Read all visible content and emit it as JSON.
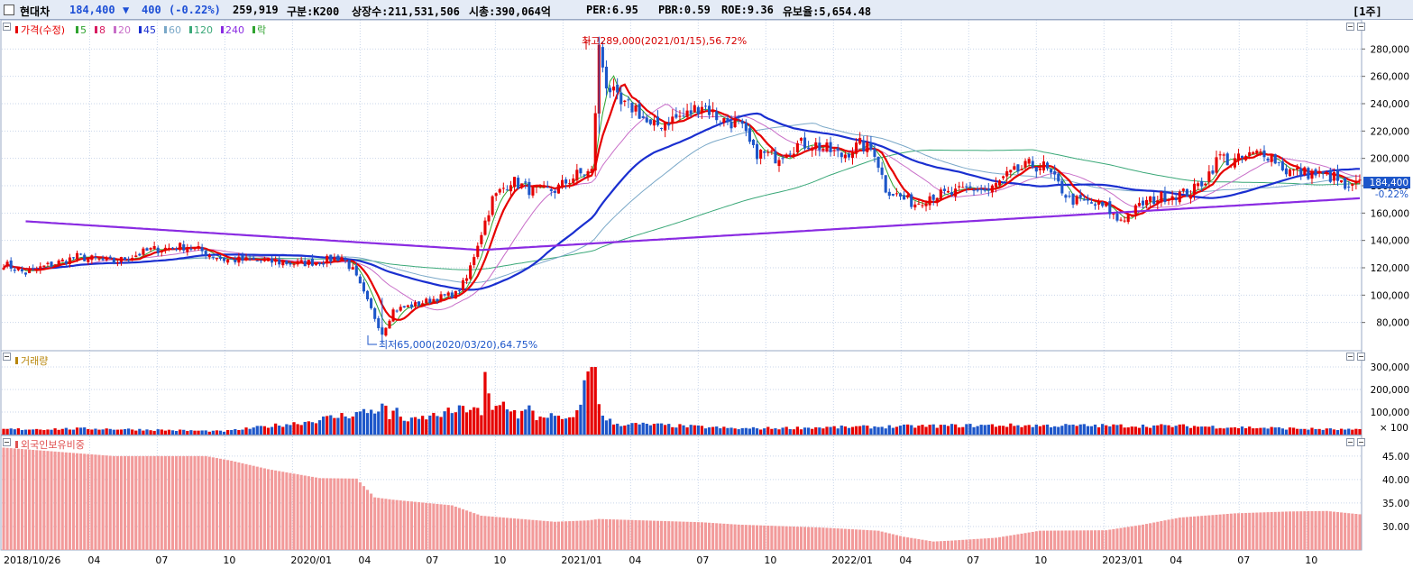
{
  "header": {
    "stock_name": "현대차",
    "price": "184,400",
    "change_arrow": "▼",
    "change": "400",
    "change_pct": "(-0.22%)",
    "volume": "259,919",
    "category": "구분:K200",
    "listed_shares": "상장수:211,531,506",
    "market_cap": "시총:390,064억",
    "per": "PER:6.95",
    "pbr": "PBR:0.59",
    "roe": "ROE:9.36",
    "reserve_ratio": "유보율:5,654.48",
    "period_button": "[1주]"
  },
  "colors": {
    "up": "#e60000",
    "down": "#1d56c9",
    "ma5": "#2fa32f",
    "ma8": "#d81b60",
    "ma20": "#c86ec8",
    "ma45": "#1a2fd0",
    "ma60": "#7aa8c8",
    "ma120": "#3aa878",
    "ma240": "#8a2be2",
    "foreign": "#f29a9a",
    "grid": "#c9d6ea"
  },
  "legend": {
    "price": "가격(수정)",
    "ma": [
      {
        "label": "5",
        "color": "#2fa32f"
      },
      {
        "label": "8",
        "color": "#d81b60"
      },
      {
        "label": "20",
        "color": "#c86ec8"
      },
      {
        "label": "45",
        "color": "#1a2fd0"
      },
      {
        "label": "60",
        "color": "#7aa8c8"
      },
      {
        "label": "120",
        "color": "#3aa878"
      },
      {
        "label": "240",
        "color": "#8a2be2"
      },
      {
        "label": "락",
        "color": "#2fa32f"
      }
    ],
    "volume": "거래량",
    "foreign": "외국인보유비중"
  },
  "annotations": {
    "high": "최고289,000(2021/01/15),56.72%",
    "low": "최저65,000(2020/03/20),64.75%"
  },
  "price_axis": {
    "ticks": [
      "280,000",
      "260,000",
      "240,000",
      "220,000",
      "200,000",
      "180,000",
      "160,000",
      "140,000",
      "120,000",
      "100,000",
      "80,000"
    ],
    "current": "184,400",
    "current_pct": "-0.22%"
  },
  "volume_axis": {
    "ticks": [
      "300,000",
      "200,000",
      "100,000"
    ],
    "unit": "× 100"
  },
  "foreign_axis": {
    "ticks": [
      "45.00",
      "40.00",
      "35.00",
      "30.00"
    ]
  },
  "x_axis": {
    "labels": [
      "2018/10/26",
      "04",
      "07",
      "10",
      "2020/01",
      "04",
      "07",
      "10",
      "2021/01",
      "04",
      "07",
      "10",
      "2022/01",
      "04",
      "07",
      "10",
      "2023/01",
      "04",
      "07",
      "10"
    ]
  },
  "chart_data": {
    "type": "candlestick",
    "period": "weekly",
    "price_range": [
      60000,
      300000
    ],
    "close_anchors": [
      [
        0,
        123000
      ],
      [
        6,
        116000
      ],
      [
        10,
        120000
      ],
      [
        20,
        128000
      ],
      [
        30,
        124000
      ],
      [
        40,
        133000
      ],
      [
        50,
        136000
      ],
      [
        60,
        126000
      ],
      [
        70,
        125000
      ],
      [
        80,
        123000
      ],
      [
        87,
        125000
      ],
      [
        92,
        128000
      ],
      [
        95,
        118000
      ],
      [
        99,
        95000
      ],
      [
        103,
        72000
      ],
      [
        106,
        89000
      ],
      [
        112,
        93000
      ],
      [
        118,
        98000
      ],
      [
        123,
        101000
      ],
      [
        126,
        112000
      ],
      [
        129,
        138000
      ],
      [
        133,
        170000
      ],
      [
        138,
        184000
      ],
      [
        144,
        176000
      ],
      [
        150,
        177000
      ],
      [
        156,
        188000
      ],
      [
        160,
        190000
      ],
      [
        162,
        280000
      ],
      [
        164,
        255000
      ],
      [
        168,
        238000
      ],
      [
        172,
        237000
      ],
      [
        176,
        222000
      ],
      [
        180,
        227000
      ],
      [
        186,
        232000
      ],
      [
        190,
        240000
      ],
      [
        195,
        228000
      ],
      [
        200,
        226000
      ],
      [
        204,
        205000
      ],
      [
        210,
        201000
      ],
      [
        216,
        210000
      ],
      [
        220,
        211000
      ],
      [
        228,
        202000
      ],
      [
        233,
        210000
      ],
      [
        237,
        205000
      ],
      [
        240,
        178000
      ],
      [
        245,
        170000
      ],
      [
        248,
        167000
      ],
      [
        252,
        173000
      ],
      [
        258,
        174000
      ],
      [
        263,
        178000
      ],
      [
        268,
        176000
      ],
      [
        273,
        187000
      ],
      [
        279,
        195000
      ],
      [
        283,
        194000
      ],
      [
        286,
        184000
      ],
      [
        290,
        170000
      ],
      [
        294,
        168000
      ],
      [
        300,
        164000
      ],
      [
        303,
        155000
      ],
      [
        306,
        158000
      ],
      [
        310,
        167000
      ],
      [
        315,
        172000
      ],
      [
        320,
        174000
      ],
      [
        323,
        175000
      ],
      [
        327,
        185000
      ],
      [
        331,
        202000
      ],
      [
        334,
        197000
      ],
      [
        337,
        200000
      ],
      [
        343,
        205000
      ],
      [
        346,
        199000
      ],
      [
        349,
        191000
      ],
      [
        353,
        190000
      ],
      [
        358,
        188000
      ],
      [
        362,
        186000
      ],
      [
        366,
        176000
      ],
      [
        369,
        184400
      ]
    ],
    "high": {
      "value": 289000,
      "date": "2021/01/15",
      "pct": "56.72%"
    },
    "low": {
      "value": 65000,
      "date": "2020/03/20",
      "pct": "64.75%"
    },
    "volume_peaks": [
      [
        0,
        0.08
      ],
      [
        25,
        0.09
      ],
      [
        60,
        0.05
      ],
      [
        82,
        0.19
      ],
      [
        100,
        0.36
      ],
      [
        104,
        0.42
      ],
      [
        105,
        0.24
      ],
      [
        106,
        0.38
      ],
      [
        110,
        0.2
      ],
      [
        128,
        0.42
      ],
      [
        130,
        0.28
      ],
      [
        131,
        0.82
      ],
      [
        133,
        0.35
      ],
      [
        135,
        0.48
      ],
      [
        137,
        0.45
      ],
      [
        140,
        0.29
      ],
      [
        143,
        0.39
      ],
      [
        145,
        0.25
      ],
      [
        148,
        0.3
      ],
      [
        151,
        0.24
      ],
      [
        155,
        0.22
      ],
      [
        160,
        1.05
      ],
      [
        161,
        1.12
      ],
      [
        162,
        0.55
      ],
      [
        163,
        0.25
      ],
      [
        167,
        0.16
      ],
      [
        176,
        0.15
      ],
      [
        200,
        0.09
      ],
      [
        266,
        0.14
      ],
      [
        320,
        0.13
      ],
      [
        369,
        0.07
      ]
    ],
    "volume_range": [
      0,
      360000
    ],
    "foreign_anchors": [
      [
        0,
        46.8
      ],
      [
        10,
        46.2
      ],
      [
        30,
        45.0
      ],
      [
        55,
        45.0
      ],
      [
        62,
        44.0
      ],
      [
        72,
        42.2
      ],
      [
        86,
        40.3
      ],
      [
        96,
        40.2
      ],
      [
        101,
        36.2
      ],
      [
        106,
        35.7
      ],
      [
        122,
        34.5
      ],
      [
        130,
        32.3
      ],
      [
        150,
        31.0
      ],
      [
        159,
        31.3
      ],
      [
        162,
        31.6
      ],
      [
        190,
        30.9
      ],
      [
        200,
        30.4
      ],
      [
        222,
        29.8
      ],
      [
        238,
        29.1
      ],
      [
        245,
        27.8
      ],
      [
        253,
        26.8
      ],
      [
        258,
        27.0
      ],
      [
        270,
        27.6
      ],
      [
        282,
        29.1
      ],
      [
        300,
        29.2
      ],
      [
        310,
        30.4
      ],
      [
        320,
        31.9
      ],
      [
        335,
        32.8
      ],
      [
        350,
        33.2
      ],
      [
        360,
        33.3
      ],
      [
        369,
        32.6
      ]
    ],
    "foreign_range": [
      25,
      49
    ],
    "n_weeks": 370
  }
}
